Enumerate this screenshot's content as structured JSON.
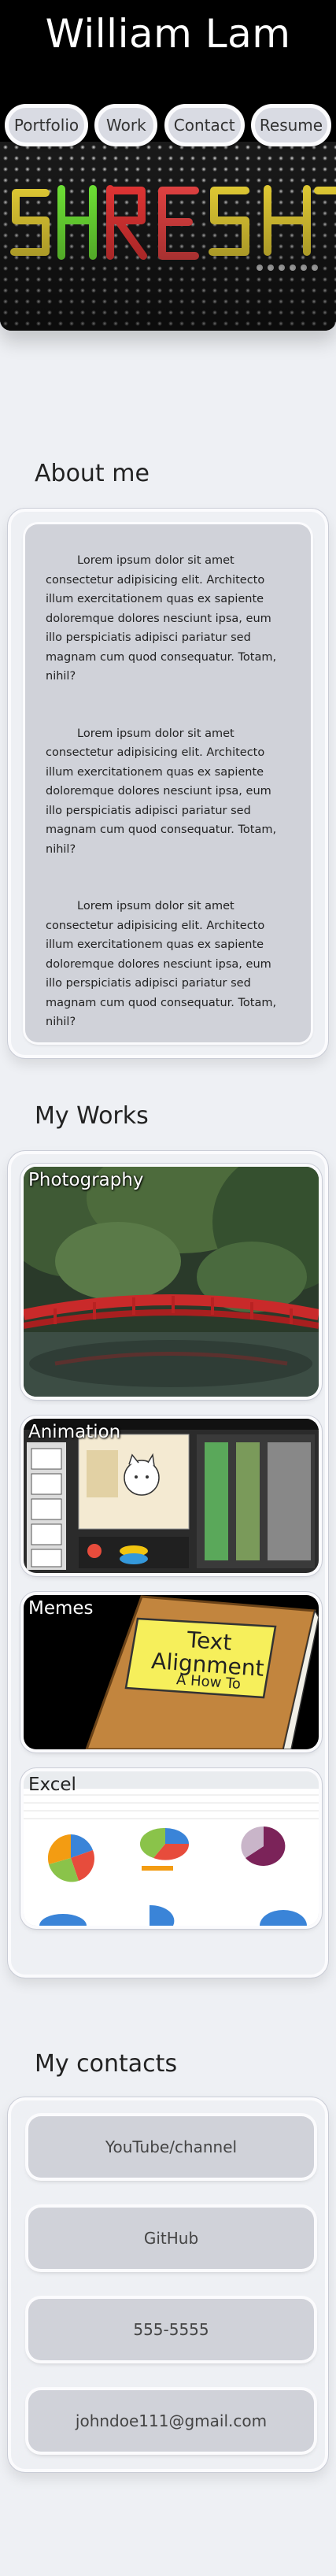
{
  "header": {
    "title": "William Lam",
    "nav": [
      "Portfolio",
      "Work",
      "Contact",
      "Resume"
    ]
  },
  "about": {
    "heading": "About me",
    "paragraphs": [
      "Lorem ipsum dolor sit amet consectetur adipisicing elit. Architecto illum exercitationem quas ex sapiente doloremque dolores nesciunt ipsa, eum illo perspiciatis adipisci pariatur sed magnam cum quod consequatur. Totam, nihil?",
      "Lorem ipsum dolor sit amet consectetur adipisicing elit. Architecto illum exercitationem quas ex sapiente doloremque dolores nesciunt ipsa, eum illo perspiciatis adipisci pariatur sed magnam cum quod consequatur. Totam, nihil?",
      "Lorem ipsum dolor sit amet consectetur adipisicing elit. Architecto illum exercitationem quas ex sapiente doloremque dolores nesciunt ipsa, eum illo perspiciatis adipisci pariatur sed magnam cum quod consequatur. Totam, nihil?"
    ]
  },
  "works": {
    "heading": "My Works",
    "items": [
      {
        "label": "Photography"
      },
      {
        "label": "Animation"
      },
      {
        "label": "Memes",
        "book_title": "Text Alignment",
        "book_subtitle": "A How To"
      },
      {
        "label": "Excel"
      }
    ]
  },
  "contacts": {
    "heading": "My contacts",
    "items": [
      "YouTube/channel",
      "GitHub",
      "555-5555",
      "johndoe111@gmail.com"
    ]
  },
  "colors": {
    "page_background": "#eef0f4",
    "panel": "#d0d2d9",
    "border": "#fbfbfd",
    "header_background": "#000000"
  }
}
